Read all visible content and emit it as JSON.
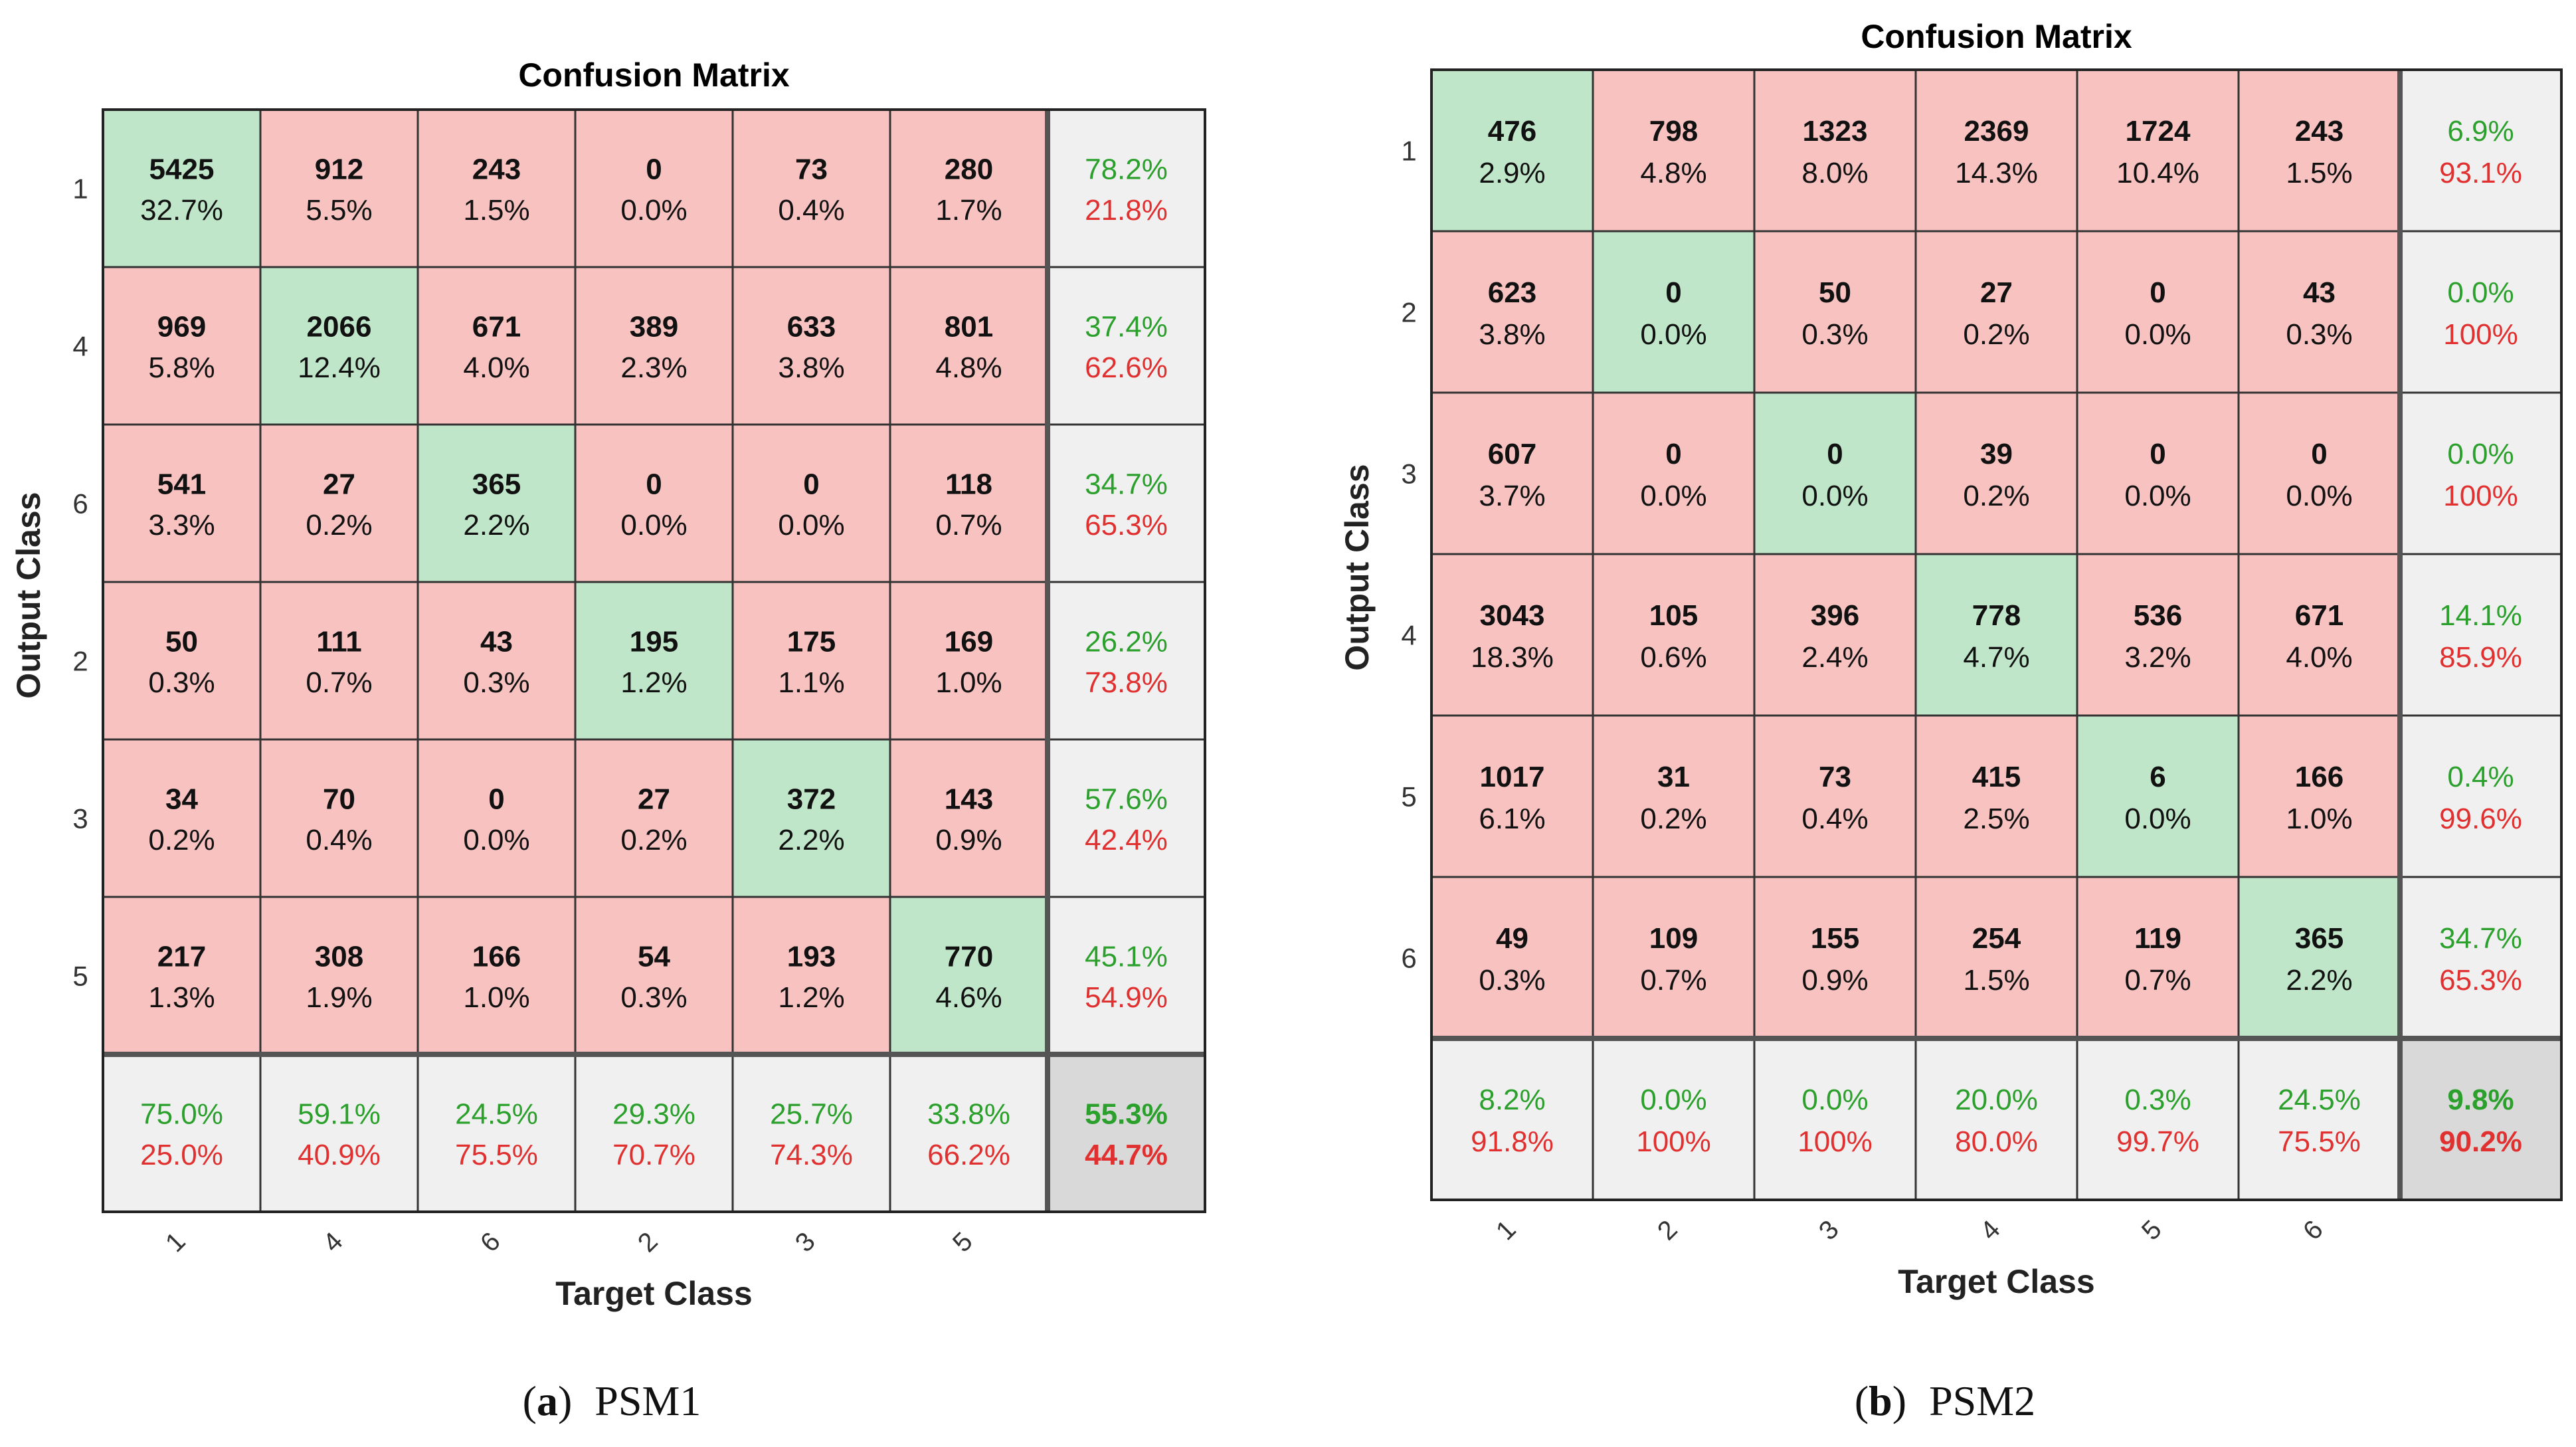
{
  "colors": {
    "correct_cell": "#bfe6c8",
    "wrong_cell": "#f7c2c0",
    "summary_cell": "#f0f0f0",
    "total_cell": "#d9d9d9",
    "good_text": "#2ca02c",
    "bad_text": "#e03030",
    "count_text": "#111111",
    "grid_line": "#333333"
  },
  "chart_data": [
    {
      "type": "heatmap",
      "title": "Confusion Matrix",
      "caption_letter": "(a)",
      "caption_text": "PSM1",
      "xlabel": "Target Class",
      "ylabel": "Output Class",
      "row_labels": [
        "1",
        "4",
        "6",
        "2",
        "3",
        "5"
      ],
      "col_labels": [
        "1",
        "4",
        "6",
        "2",
        "3",
        "5"
      ],
      "counts": [
        [
          5425,
          912,
          243,
          0,
          73,
          280
        ],
        [
          969,
          2066,
          671,
          389,
          633,
          801
        ],
        [
          541,
          27,
          365,
          0,
          0,
          118
        ],
        [
          50,
          111,
          43,
          195,
          175,
          169
        ],
        [
          34,
          70,
          0,
          27,
          372,
          143
        ],
        [
          217,
          308,
          166,
          54,
          193,
          770
        ]
      ],
      "percents": [
        [
          "32.7%",
          "5.5%",
          "1.5%",
          "0.0%",
          "0.4%",
          "1.7%"
        ],
        [
          "5.8%",
          "12.4%",
          "4.0%",
          "2.3%",
          "3.8%",
          "4.8%"
        ],
        [
          "3.3%",
          "0.2%",
          "2.2%",
          "0.0%",
          "0.0%",
          "0.7%"
        ],
        [
          "0.3%",
          "0.7%",
          "0.3%",
          "1.2%",
          "1.1%",
          "1.0%"
        ],
        [
          "0.2%",
          "0.4%",
          "0.0%",
          "0.2%",
          "2.2%",
          "0.9%"
        ],
        [
          "1.3%",
          "1.9%",
          "1.0%",
          "0.3%",
          "1.2%",
          "4.6%"
        ]
      ],
      "row_summary": [
        [
          "78.2%",
          "21.8%"
        ],
        [
          "37.4%",
          "62.6%"
        ],
        [
          "34.7%",
          "65.3%"
        ],
        [
          "26.2%",
          "73.8%"
        ],
        [
          "57.6%",
          "42.4%"
        ],
        [
          "45.1%",
          "54.9%"
        ]
      ],
      "col_summary": [
        [
          "75.0%",
          "25.0%"
        ],
        [
          "59.1%",
          "40.9%"
        ],
        [
          "24.5%",
          "75.5%"
        ],
        [
          "29.3%",
          "70.7%"
        ],
        [
          "25.7%",
          "74.3%"
        ],
        [
          "33.8%",
          "66.2%"
        ]
      ],
      "overall": [
        "55.3%",
        "44.7%"
      ]
    },
    {
      "type": "heatmap",
      "title": "Confusion Matrix",
      "caption_letter": "(b)",
      "caption_text": "PSM2",
      "xlabel": "Target Class",
      "ylabel": "Output Class",
      "row_labels": [
        "1",
        "2",
        "3",
        "4",
        "5",
        "6"
      ],
      "col_labels": [
        "1",
        "2",
        "3",
        "4",
        "5",
        "6"
      ],
      "counts": [
        [
          476,
          798,
          1323,
          2369,
          1724,
          243
        ],
        [
          623,
          0,
          50,
          27,
          0,
          43
        ],
        [
          607,
          0,
          0,
          39,
          0,
          0
        ],
        [
          3043,
          105,
          396,
          778,
          536,
          671
        ],
        [
          1017,
          31,
          73,
          415,
          6,
          166
        ],
        [
          49,
          109,
          155,
          254,
          119,
          365
        ]
      ],
      "percents": [
        [
          "2.9%",
          "4.8%",
          "8.0%",
          "14.3%",
          "10.4%",
          "1.5%"
        ],
        [
          "3.8%",
          "0.0%",
          "0.3%",
          "0.2%",
          "0.0%",
          "0.3%"
        ],
        [
          "3.7%",
          "0.0%",
          "0.0%",
          "0.2%",
          "0.0%",
          "0.0%"
        ],
        [
          "18.3%",
          "0.6%",
          "2.4%",
          "4.7%",
          "3.2%",
          "4.0%"
        ],
        [
          "6.1%",
          "0.2%",
          "0.4%",
          "2.5%",
          "0.0%",
          "1.0%"
        ],
        [
          "0.3%",
          "0.7%",
          "0.9%",
          "1.5%",
          "0.7%",
          "2.2%"
        ]
      ],
      "row_summary": [
        [
          "6.9%",
          "93.1%"
        ],
        [
          "0.0%",
          "100%"
        ],
        [
          "0.0%",
          "100%"
        ],
        [
          "14.1%",
          "85.9%"
        ],
        [
          "0.4%",
          "99.6%"
        ],
        [
          "34.7%",
          "65.3%"
        ]
      ],
      "col_summary": [
        [
          "8.2%",
          "91.8%"
        ],
        [
          "0.0%",
          "100%"
        ],
        [
          "0.0%",
          "100%"
        ],
        [
          "20.0%",
          "80.0%"
        ],
        [
          "0.3%",
          "99.7%"
        ],
        [
          "24.5%",
          "75.5%"
        ]
      ],
      "overall": [
        "9.8%",
        "90.2%"
      ]
    }
  ]
}
